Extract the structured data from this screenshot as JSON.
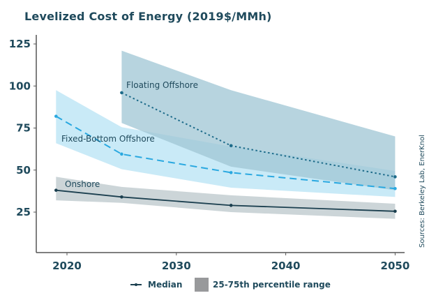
{
  "chart_data": {
    "type": "line",
    "title": "Levelized Cost of Energy (2019$/MMh)",
    "xlabel": "",
    "ylabel": "",
    "xlim": [
      2016,
      2051
    ],
    "ylim": [
      10,
      130
    ],
    "x_ticks": [
      2020,
      2030,
      2040,
      2050
    ],
    "y_ticks": [
      25,
      50,
      75,
      100,
      125
    ],
    "grid": false,
    "series": [
      {
        "name": "Floating Offshore",
        "style": "dotted",
        "color": "#1d6b8a",
        "band_color": "#9fc5d4",
        "x": [
          2025,
          2035,
          2050
        ],
        "median": [
          96,
          64.5,
          46
        ],
        "p25": [
          78,
          52,
          38
        ],
        "p75": [
          121,
          97.5,
          70
        ]
      },
      {
        "name": "Fixed-Bottom Offshore",
        "style": "dashed",
        "color": "#29a8e0",
        "band_color": "#bfe6f6",
        "x": [
          2019,
          2025,
          2035,
          2050
        ],
        "median": [
          82,
          59.5,
          48.5,
          39
        ],
        "p25": [
          66,
          50.5,
          39.5,
          34
        ],
        "p75": [
          97.5,
          75.5,
          64,
          49.5
        ]
      },
      {
        "name": "Onshore",
        "style": "solid",
        "color": "#1b3f4f",
        "band_color": "#c6d0d4",
        "x": [
          2019,
          2025,
          2035,
          2050
        ],
        "median": [
          38,
          34,
          29,
          25.5
        ],
        "p25": [
          32,
          30.5,
          25,
          21
        ],
        "p75": [
          46,
          40,
          35,
          30
        ]
      }
    ],
    "legend": {
      "position": "bottom",
      "median_label": "Median",
      "range_label": "25-75th percentile range"
    },
    "source": "Sources: Berkeley Lab, EnerKnol"
  }
}
